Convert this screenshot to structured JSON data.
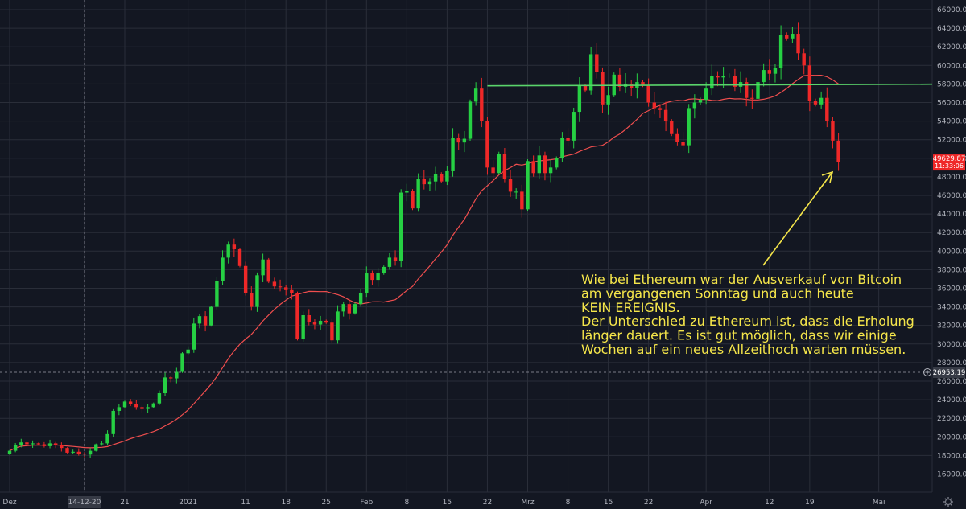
{
  "chart_data": {
    "type": "candlestick",
    "title": "",
    "y_axis": {
      "ticks": [
        16000,
        18000,
        20000,
        22000,
        24000,
        26000,
        28000,
        30000,
        32000,
        34000,
        36000,
        38000,
        40000,
        42000,
        44000,
        46000,
        48000,
        50000,
        52000,
        54000,
        56000,
        58000,
        60000,
        62000,
        64000,
        66000
      ],
      "ylim": [
        14600,
        66500
      ]
    },
    "x_axis": {
      "ticks": [
        {
          "label": "Dez",
          "day": 0
        },
        {
          "label": "14-12-20",
          "day": 13
        },
        {
          "label": "21",
          "day": 20
        },
        {
          "label": "2021",
          "day": 31
        },
        {
          "label": "11",
          "day": 41
        },
        {
          "label": "18",
          "day": 48
        },
        {
          "label": "25",
          "day": 55
        },
        {
          "label": "Feb",
          "day": 62
        },
        {
          "label": "8",
          "day": 69
        },
        {
          "label": "15",
          "day": 76
        },
        {
          "label": "22",
          "day": 83
        },
        {
          "label": "Mrz",
          "day": 90
        },
        {
          "label": "8",
          "day": 97
        },
        {
          "label": "15",
          "day": 104
        },
        {
          "label": "22",
          "day": 111
        },
        {
          "label": "Apr",
          "day": 121
        },
        {
          "label": "12",
          "day": 132
        },
        {
          "label": "19",
          "day": 139
        },
        {
          "label": "Mai",
          "day": 151
        }
      ]
    },
    "candles_close": [
      18500,
      19100,
      19400,
      19200,
      19300,
      19200,
      19000,
      19300,
      19100,
      18800,
      18300,
      18400,
      18200,
      18100,
      18500,
      19200,
      19300,
      20300,
      22800,
      23200,
      23800,
      23500,
      23200,
      23000,
      23200,
      23600,
      24700,
      26400,
      26300,
      27000,
      29000,
      29400,
      32200,
      33000,
      32000,
      34000,
      36800,
      39300,
      40700,
      40200,
      38400,
      35500,
      34000,
      37400,
      39100,
      36700,
      36200,
      36100,
      35800,
      35500,
      30500,
      33100,
      32400,
      32100,
      32500,
      32300,
      30400,
      33500,
      34300,
      33300,
      34300,
      35500,
      37600,
      36900,
      37600,
      38300,
      39300,
      38900,
      46300,
      46500,
      44600,
      47800,
      47200,
      47500,
      48300,
      47500,
      48600,
      52200,
      51700,
      52100,
      56100,
      57500,
      54000,
      49000,
      48400,
      50500,
      47800,
      46400,
      46400,
      44500,
      49700,
      48400,
      50300,
      48400,
      49000,
      50000,
      52200,
      51900,
      55000,
      57800,
      57300,
      61200,
      59300,
      55800,
      56800,
      59000,
      57700,
      58000,
      57600,
      58200,
      57900,
      56000,
      55400,
      55200,
      54000,
      52600,
      51800,
      51400,
      55400,
      56000,
      56300,
      57500,
      58900,
      58700,
      58900,
      58900,
      57700,
      58200,
      56500,
      56400,
      58200,
      59500,
      59100,
      59700,
      63300,
      62900,
      63400,
      61300,
      60000,
      56200,
      55800,
      56500,
      54000,
      51900,
      49630
    ],
    "ma_period": 21,
    "horizontal_line": {
      "value": 57800,
      "label": ""
    },
    "price_labels": {
      "current": "49629.87",
      "countdown": "11:33:06",
      "crosshair": "26953.19"
    },
    "colors": {
      "background": "#131722",
      "up": "#26d043",
      "down": "#ef2828",
      "ma": "#ef4e4e",
      "horizontal_line": "#5ad46b",
      "annotation": "#f5e64a",
      "arrow": "#f5e64a",
      "grid": "#2a2e39",
      "axis_text": "#b2b5be"
    },
    "annotation": {
      "lines": [
        "Wie bei Ethereum war der Ausverkauf von Bitcoin",
        "am vergangenen Sonntag und auch heute",
        "KEIN EREIGNIS.",
        "Der Unterschied zu Ethereum ist, dass die Erholung",
        "länger dauert. Es ist gut möglich, dass wir einige",
        "Wochen auf ein neues Allzeithoch warten müssen."
      ]
    }
  },
  "icons": {
    "settings": "gear-icon",
    "crosshair_marker": "plus-circle-icon"
  }
}
